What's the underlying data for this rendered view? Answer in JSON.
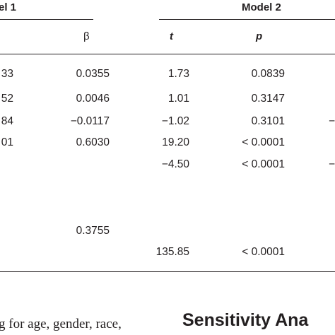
{
  "table": {
    "group_headers": {
      "model1": "el 1",
      "model2": "Model 2"
    },
    "column_headers": {
      "beta": "β",
      "t": "t",
      "p": "p"
    },
    "rows": [
      {
        "c0": "33",
        "beta": "0.0355",
        "t": "1.73",
        "p": "0.0839",
        "edge": ""
      },
      {
        "c0": "52",
        "beta": "0.0046",
        "t": "1.01",
        "p": "0.3147",
        "edge": ""
      },
      {
        "c0": "84",
        "beta": "−0.0117",
        "t": "−1.02",
        "p": "0.3101",
        "edge": "−"
      },
      {
        "c0": "01",
        "beta": "0.6030",
        "t": "19.20",
        "p": "< 0.0001",
        "edge": ""
      },
      {
        "c0": "",
        "beta": "",
        "t": "−4.50",
        "p": "< 0.0001",
        "edge": "−"
      },
      {
        "c0": "",
        "beta": "",
        "t": "",
        "p": "",
        "edge": ""
      },
      {
        "c0": "",
        "beta": "0.3755",
        "t": "",
        "p": "",
        "edge": ""
      },
      {
        "c0": "",
        "beta": "",
        "t": "135.85",
        "p": "< 0.0001",
        "edge": ""
      }
    ]
  },
  "body_text": {
    "paragraph_fragment": "g for age, gender, race,",
    "section_heading": "Sensitivity Ana"
  }
}
